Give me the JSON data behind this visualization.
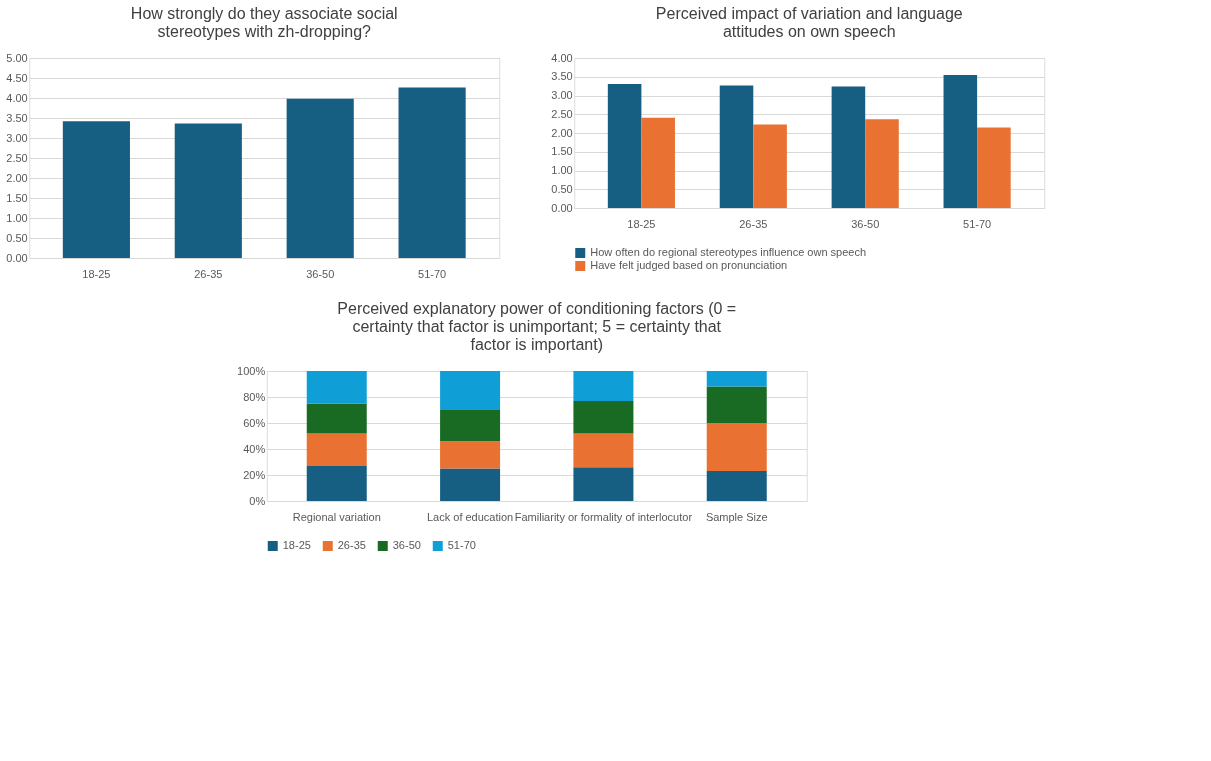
{
  "chart_data": [
    {
      "type": "bar",
      "title": "How strongly do they associate social stereotypes with zh-dropping?",
      "categories": [
        "18-25",
        "26-35",
        "36-50",
        "51-70"
      ],
      "values": [
        3.42,
        3.36,
        3.98,
        4.26
      ],
      "color": "#175f82",
      "ylim": [
        0,
        5
      ],
      "yticks": [
        {
          "value": 0,
          "label": "0.00"
        },
        {
          "value": 0.5,
          "label": "0.50"
        },
        {
          "value": 1,
          "label": "1.00"
        },
        {
          "value": 1.5,
          "label": "1.50"
        },
        {
          "value": 2,
          "label": "2.00"
        },
        {
          "value": 2.5,
          "label": "2.50"
        },
        {
          "value": 3,
          "label": "3.00"
        },
        {
          "value": 3.5,
          "label": "3.50"
        },
        {
          "value": 4,
          "label": "4.00"
        },
        {
          "value": 4.5,
          "label": "4.50"
        },
        {
          "value": 5,
          "label": "5.00"
        }
      ],
      "grid": "y",
      "legend": false
    },
    {
      "type": "bar",
      "title": "Perceived impact of variation and language attitudes on own speech",
      "categories": [
        "18-25",
        "26-35",
        "36-50",
        "51-70"
      ],
      "series": [
        {
          "name": "How often do regional stereotypes influence own speech",
          "color": "#175f82",
          "values": [
            3.31,
            3.27,
            3.24,
            3.55
          ]
        },
        {
          "name": "Have felt judged based on pronunciation",
          "color": "#e97132",
          "values": [
            2.41,
            2.23,
            2.37,
            2.15
          ]
        }
      ],
      "ylim": [
        0,
        4
      ],
      "yticks": [
        {
          "value": 0,
          "label": "0.00"
        },
        {
          "value": 0.5,
          "label": "0.50"
        },
        {
          "value": 1,
          "label": "1.00"
        },
        {
          "value": 1.5,
          "label": "1.50"
        },
        {
          "value": 2,
          "label": "2.00"
        },
        {
          "value": 2.5,
          "label": "2.50"
        },
        {
          "value": 3,
          "label": "3.00"
        },
        {
          "value": 3.5,
          "label": "3.50"
        },
        {
          "value": 4,
          "label": "4.00"
        }
      ],
      "grid": "y",
      "legend": "bottom"
    },
    {
      "type": "bar",
      "stacked": true,
      "title": "Perceived explanatory power of conditioning factors (0 = certainty that factor is unimportant; 5 = certainty that factor is important)",
      "categories": [
        "Regional variation",
        "Lack of education",
        "Familiarity or formality of interlocutor",
        "Sample Size"
      ],
      "series": [
        {
          "name": "18-25",
          "color": "#175f82",
          "values": [
            27,
            25,
            26,
            23
          ]
        },
        {
          "name": "26-35",
          "color": "#e97132",
          "values": [
            25,
            21,
            26,
            37
          ]
        },
        {
          "name": "36-50",
          "color": "#196b24",
          "values": [
            23,
            24,
            25,
            28
          ]
        },
        {
          "name": "51-70",
          "color": "#0f9ed5",
          "values": [
            25,
            30,
            23,
            12
          ]
        }
      ],
      "ylim": [
        0,
        100
      ],
      "yticks": [
        {
          "value": 0,
          "label": "0%"
        },
        {
          "value": 20,
          "label": "20%"
        },
        {
          "value": 40,
          "label": "40%"
        },
        {
          "value": 60,
          "label": "60%"
        },
        {
          "value": 80,
          "label": "80%"
        },
        {
          "value": 100,
          "label": "100%"
        }
      ],
      "grid": "y",
      "legend": "bottom"
    }
  ]
}
